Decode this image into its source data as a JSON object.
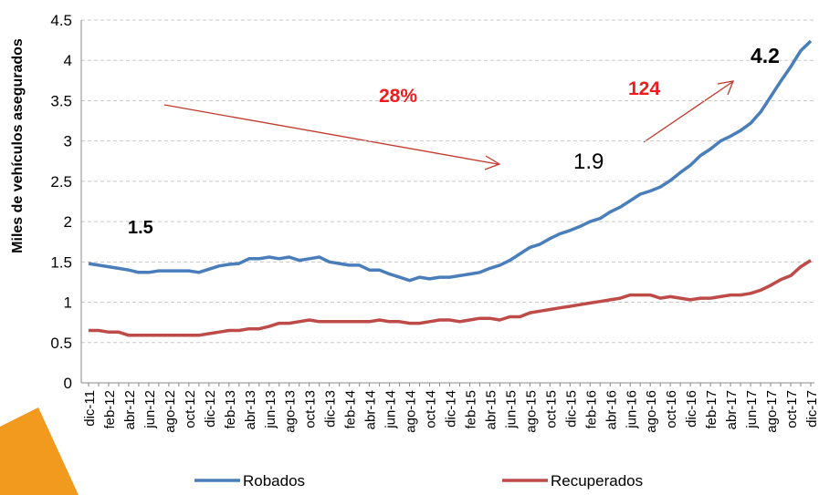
{
  "chart_data": {
    "type": "line",
    "y_label": "Miles de vehículos asegurados",
    "categories": [
      "dic-11",
      null,
      "feb-12",
      null,
      "abr-12",
      null,
      "jun-12",
      null,
      "ago-12",
      null,
      "oct-12",
      null,
      "dic-12",
      null,
      "feb-13",
      null,
      "abr-13",
      null,
      "jun-13",
      null,
      "ago-13",
      null,
      "oct-13",
      null,
      "dic-13",
      null,
      "feb-14",
      null,
      "abr-14",
      null,
      "jun-14",
      null,
      "ago-14",
      null,
      "oct-14",
      null,
      "dic-14",
      null,
      "feb-15",
      null,
      "abr-15",
      null,
      "jun-15",
      null,
      "ago-15",
      null,
      "oct-15",
      null,
      "dic-15",
      null,
      "feb-16",
      null,
      "abr-16",
      null,
      "jun-16",
      null,
      "ago-16",
      null,
      "oct-16",
      null,
      "dic-16",
      null,
      "feb-17",
      null,
      "abr-17",
      null,
      "jun-17",
      null,
      "ago-17",
      null,
      "oct-17",
      null,
      "dic-17"
    ],
    "series": [
      {
        "name": "Robados",
        "color": "#4a7ebb",
        "values": [
          1.48,
          1.46,
          1.44,
          1.42,
          1.4,
          1.37,
          1.37,
          1.39,
          1.39,
          1.39,
          1.39,
          1.37,
          1.41,
          1.45,
          1.47,
          1.48,
          1.54,
          1.54,
          1.56,
          1.54,
          1.56,
          1.52,
          1.54,
          1.56,
          1.5,
          1.48,
          1.46,
          1.46,
          1.4,
          1.4,
          1.35,
          1.31,
          1.27,
          1.31,
          1.29,
          1.31,
          1.31,
          1.33,
          1.35,
          1.37,
          1.42,
          1.46,
          1.52,
          1.6,
          1.68,
          1.72,
          1.79,
          1.85,
          1.89,
          1.94,
          2.0,
          2.04,
          2.12,
          2.18,
          2.26,
          2.34,
          2.38,
          2.43,
          2.51,
          2.61,
          2.7,
          2.82,
          2.9,
          3.0,
          3.06,
          3.13,
          3.22,
          3.36,
          3.55,
          3.74,
          3.92,
          4.12,
          4.24
        ]
      },
      {
        "name": "Recuperados",
        "color": "#be4b48",
        "values": [
          0.65,
          0.65,
          0.63,
          0.63,
          0.59,
          0.59,
          0.59,
          0.59,
          0.59,
          0.59,
          0.59,
          0.59,
          0.61,
          0.63,
          0.65,
          0.65,
          0.67,
          0.67,
          0.7,
          0.74,
          0.74,
          0.76,
          0.78,
          0.76,
          0.76,
          0.76,
          0.76,
          0.76,
          0.76,
          0.78,
          0.76,
          0.76,
          0.74,
          0.74,
          0.76,
          0.78,
          0.78,
          0.76,
          0.78,
          0.8,
          0.8,
          0.78,
          0.82,
          0.82,
          0.87,
          0.89,
          0.91,
          0.93,
          0.95,
          0.97,
          0.99,
          1.01,
          1.03,
          1.05,
          1.09,
          1.09,
          1.09,
          1.05,
          1.07,
          1.05,
          1.03,
          1.05,
          1.05,
          1.07,
          1.09,
          1.09,
          1.11,
          1.15,
          1.21,
          1.28,
          1.33,
          1.44,
          1.52
        ]
      }
    ],
    "ylim": [
      0,
      4.5
    ],
    "yticks": [
      0,
      0.5,
      1,
      1.5,
      2,
      2.5,
      3,
      3.5,
      4,
      4.5
    ],
    "grid": true,
    "annotations": [
      "1.5",
      "28%",
      "1.9",
      "124",
      "4.2"
    ],
    "legend": "bottom"
  }
}
